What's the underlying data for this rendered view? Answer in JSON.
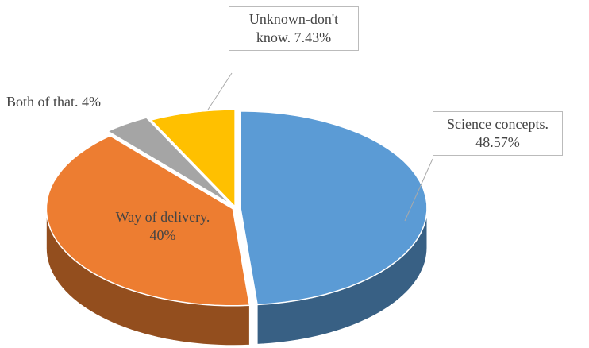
{
  "chart_data": {
    "type": "pie",
    "categories": [
      "Science concepts.",
      "Way of delivery.",
      "Both of that.",
      "Unknown-don't know."
    ],
    "values": [
      48.57,
      40,
      4,
      7.43
    ],
    "value_labels": [
      "48.57%",
      "40%",
      "4%",
      "7.43%"
    ],
    "colors": [
      "#5b9bd5",
      "#ed7d31",
      "#a5a5a5",
      "#ffc000"
    ]
  }
}
